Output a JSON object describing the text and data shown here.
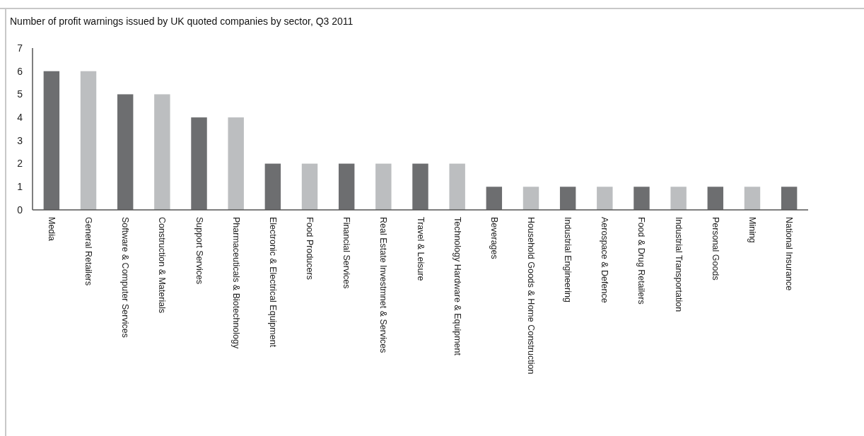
{
  "chart_data": {
    "type": "bar",
    "title": "Number of profit warnings issued by UK quoted companies by sector, Q3 2011",
    "categories": [
      "Media",
      "General Retailers",
      "Software & Computer Services",
      "Construction & Materials",
      "Support Services",
      "Pharmaceuticals & Biotechnology",
      "Electronic & Electrical Equipment",
      "Food Producers",
      "Financial Services",
      "Real Estate Investmnet & Services",
      "Travel & Leisure",
      "Technology Hardware & Equipment",
      "Beverages",
      "Household Goods & Home Construction",
      "Industrial Engineering",
      "Aerospace & Defence",
      "Food & Drug Retailers",
      "Industrial Transportation",
      "Personal Goods",
      "Mining",
      "National Insurance"
    ],
    "values": [
      6,
      6,
      5,
      5,
      4,
      4,
      2,
      2,
      2,
      2,
      2,
      2,
      1,
      1,
      1,
      1,
      1,
      1,
      1,
      1,
      1
    ],
    "colors": [
      "#6d6e70",
      "#bcbec0",
      "#6d6e70",
      "#bcbec0",
      "#6d6e70",
      "#bcbec0",
      "#6d6e70",
      "#bcbec0",
      "#6d6e70",
      "#bcbec0",
      "#6d6e70",
      "#bcbec0",
      "#6d6e70",
      "#bcbec0",
      "#6d6e70",
      "#bcbec0",
      "#6d6e70",
      "#bcbec0",
      "#6d6e70",
      "#bcbec0",
      "#6d6e70"
    ],
    "ylim": [
      0,
      7
    ],
    "yticks": [
      0,
      1,
      2,
      3,
      4,
      5,
      6,
      7
    ],
    "grid": false
  }
}
